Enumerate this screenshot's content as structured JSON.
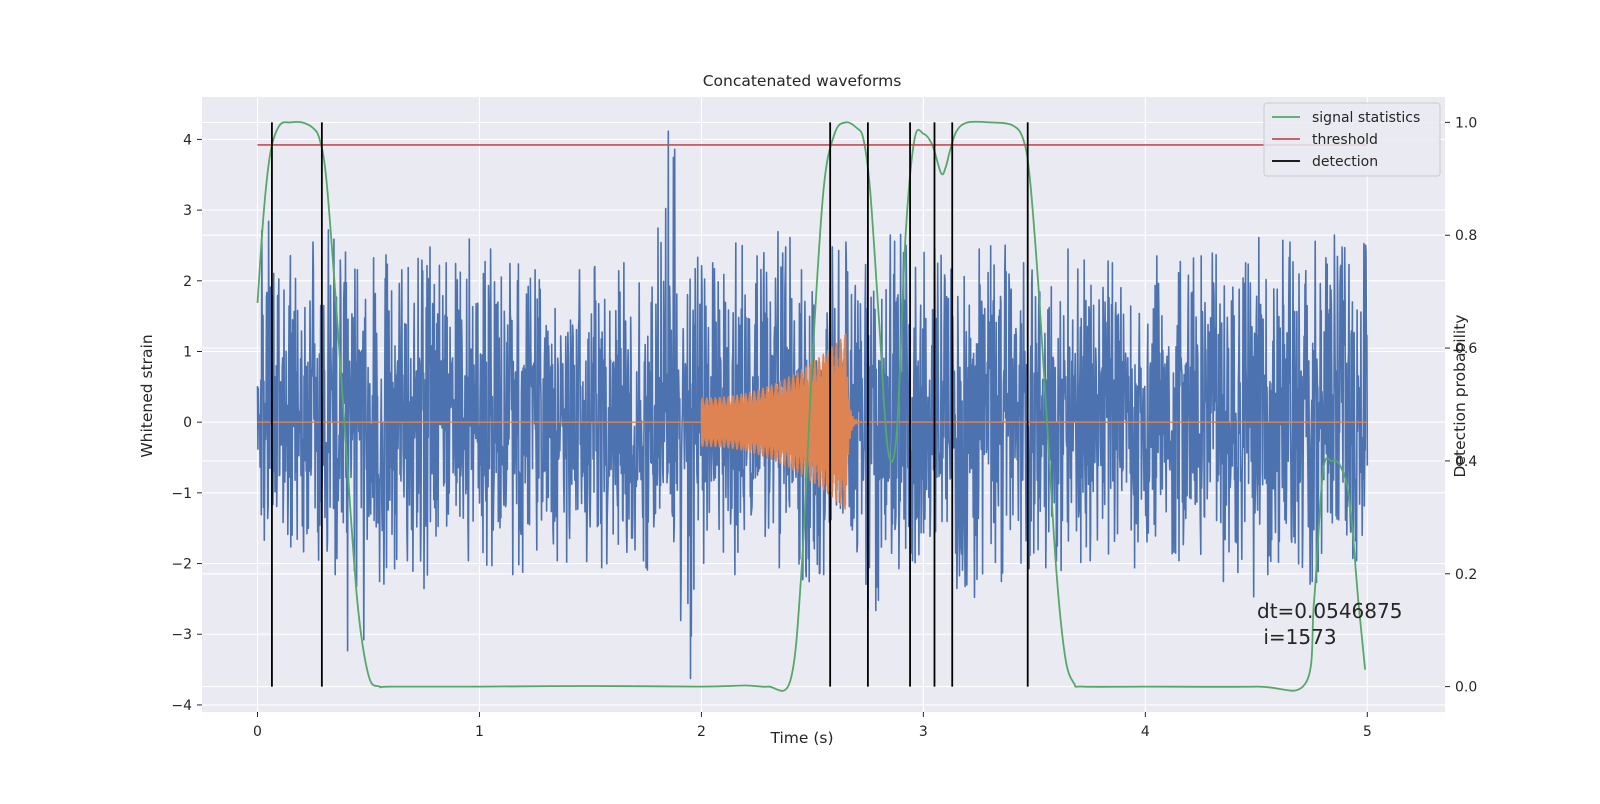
{
  "chart_data": {
    "type": "line",
    "title": "Concatenated waveforms",
    "xlabel": "Time (s)",
    "ylabel": "Whitened strain",
    "y2label": "Detection probability",
    "xlim": [
      -0.25,
      5.35
    ],
    "ylim": [
      -4.1,
      4.6
    ],
    "y2lim": [
      -0.045,
      1.045
    ],
    "xticks": [
      0,
      1,
      2,
      3,
      4,
      5
    ],
    "xtick_labels": [
      "0",
      "1",
      "2",
      "3",
      "4",
      "5"
    ],
    "yticks": [
      -4,
      -3,
      -2,
      -1,
      0,
      1,
      2,
      3,
      4
    ],
    "ytick_labels": [
      "−4",
      "−3",
      "−2",
      "−1",
      "0",
      "1",
      "2",
      "3",
      "4"
    ],
    "y2ticks": [
      0.0,
      0.2,
      0.4,
      0.6,
      0.8,
      1.0
    ],
    "y2tick_labels": [
      "0.0",
      "0.2",
      "0.4",
      "0.6",
      "0.8",
      "1.0"
    ],
    "grid": true,
    "legend_position": "top-right",
    "legend": [
      "signal statistics",
      "threshold",
      "detection"
    ],
    "annotation": [
      "dt=0.0546875",
      " i=1573"
    ],
    "colors": {
      "strain": "#4c72b0",
      "waveform": "#dd8452",
      "signal_statistics": "#55a868",
      "threshold": "#c44e52",
      "detection": "#000000",
      "axes_bg": "#eaeaf2",
      "grid": "#ffffff"
    },
    "strain": {
      "x_range": [
        0,
        5
      ],
      "envelope_min": [
        -1.9,
        -1.8,
        -2.0,
        -2.2,
        -3.3,
        -2.3,
        -2.1,
        -2.4,
        -2.2,
        -2.0,
        -2.1,
        -2.2,
        -2.2,
        -2.0,
        -2.0,
        -2.1,
        -2.2,
        -2.1,
        -2.0,
        -3.7,
        -2.1,
        -2.2,
        -2.0,
        -2.1,
        -2.4,
        -2.2,
        -2.1,
        -2.7,
        -2.2,
        -2.0,
        -2.2,
        -2.4,
        -2.5,
        -2.3,
        -2.2,
        -2.1,
        -2.2,
        -2.0,
        -2.0,
        -2.1,
        -2.2,
        -2.0,
        -2.1,
        -2.3,
        -2.5,
        -2.2,
        -2.6,
        -2.3,
        -2.1,
        -2.0
      ],
      "envelope_max": [
        2.9,
        2.4,
        2.6,
        2.8,
        2.2,
        2.4,
        2.2,
        2.5,
        2.3,
        2.6,
        2.5,
        2.3,
        2.2,
        2.1,
        2.2,
        2.4,
        2.3,
        2.6,
        4.2,
        2.5,
        2.3,
        2.6,
        2.4,
        2.7,
        2.2,
        2.5,
        2.6,
        2.4,
        2.7,
        2.6,
        2.5,
        2.6,
        2.5,
        2.6,
        2.3,
        2.4,
        2.5,
        2.3,
        2.3,
        2.5,
        2.4,
        2.3,
        2.4,
        2.5,
        2.3,
        2.8,
        2.6,
        2.6,
        2.7,
        2.6
      ]
    },
    "waveform": {
      "x_start": 2.0,
      "x_merger": 2.65,
      "amplitude_start": 0.35,
      "amplitude_peak": 1.25
    },
    "signal_statistics": {
      "x": [
        0,
        0.03,
        0.06,
        0.1,
        0.15,
        0.2,
        0.25,
        0.28,
        0.31,
        0.35,
        0.4,
        0.45,
        0.5,
        0.55,
        0.6,
        1.0,
        1.5,
        2.0,
        2.2,
        2.3,
        2.4,
        2.45,
        2.5,
        2.55,
        2.6,
        2.65,
        2.7,
        2.73,
        2.76,
        2.8,
        2.84,
        2.88,
        2.92,
        2.96,
        3.0,
        3.04,
        3.08,
        3.1,
        3.12,
        3.15,
        3.2,
        3.3,
        3.4,
        3.45,
        3.48,
        3.52,
        3.56,
        3.6,
        3.64,
        3.68,
        3.72,
        4.0,
        4.5,
        4.72,
        4.76,
        4.8,
        4.84,
        4.88,
        4.92,
        4.96,
        4.99
      ],
      "y": [
        0.68,
        0.85,
        0.95,
        0.995,
        1.0,
        1.0,
        0.99,
        0.97,
        0.9,
        0.7,
        0.42,
        0.15,
        0.02,
        0.0,
        0.0,
        0.0,
        0.001,
        0.0,
        0.002,
        0.0,
        0.01,
        0.2,
        0.58,
        0.88,
        0.98,
        1.0,
        0.99,
        0.97,
        0.88,
        0.65,
        0.42,
        0.45,
        0.8,
        0.97,
        0.98,
        0.96,
        0.91,
        0.92,
        0.95,
        0.985,
        1.0,
        1.0,
        0.995,
        0.97,
        0.9,
        0.7,
        0.45,
        0.2,
        0.05,
        0.005,
        0.0,
        0.0,
        0.0,
        0.005,
        0.15,
        0.38,
        0.4,
        0.39,
        0.33,
        0.15,
        0.03
      ]
    },
    "threshold": {
      "value": 0.96,
      "x_range": [
        0,
        5
      ]
    },
    "detections": [
      0.065,
      0.29,
      2.58,
      2.75,
      2.94,
      3.05,
      3.13,
      3.47
    ]
  }
}
